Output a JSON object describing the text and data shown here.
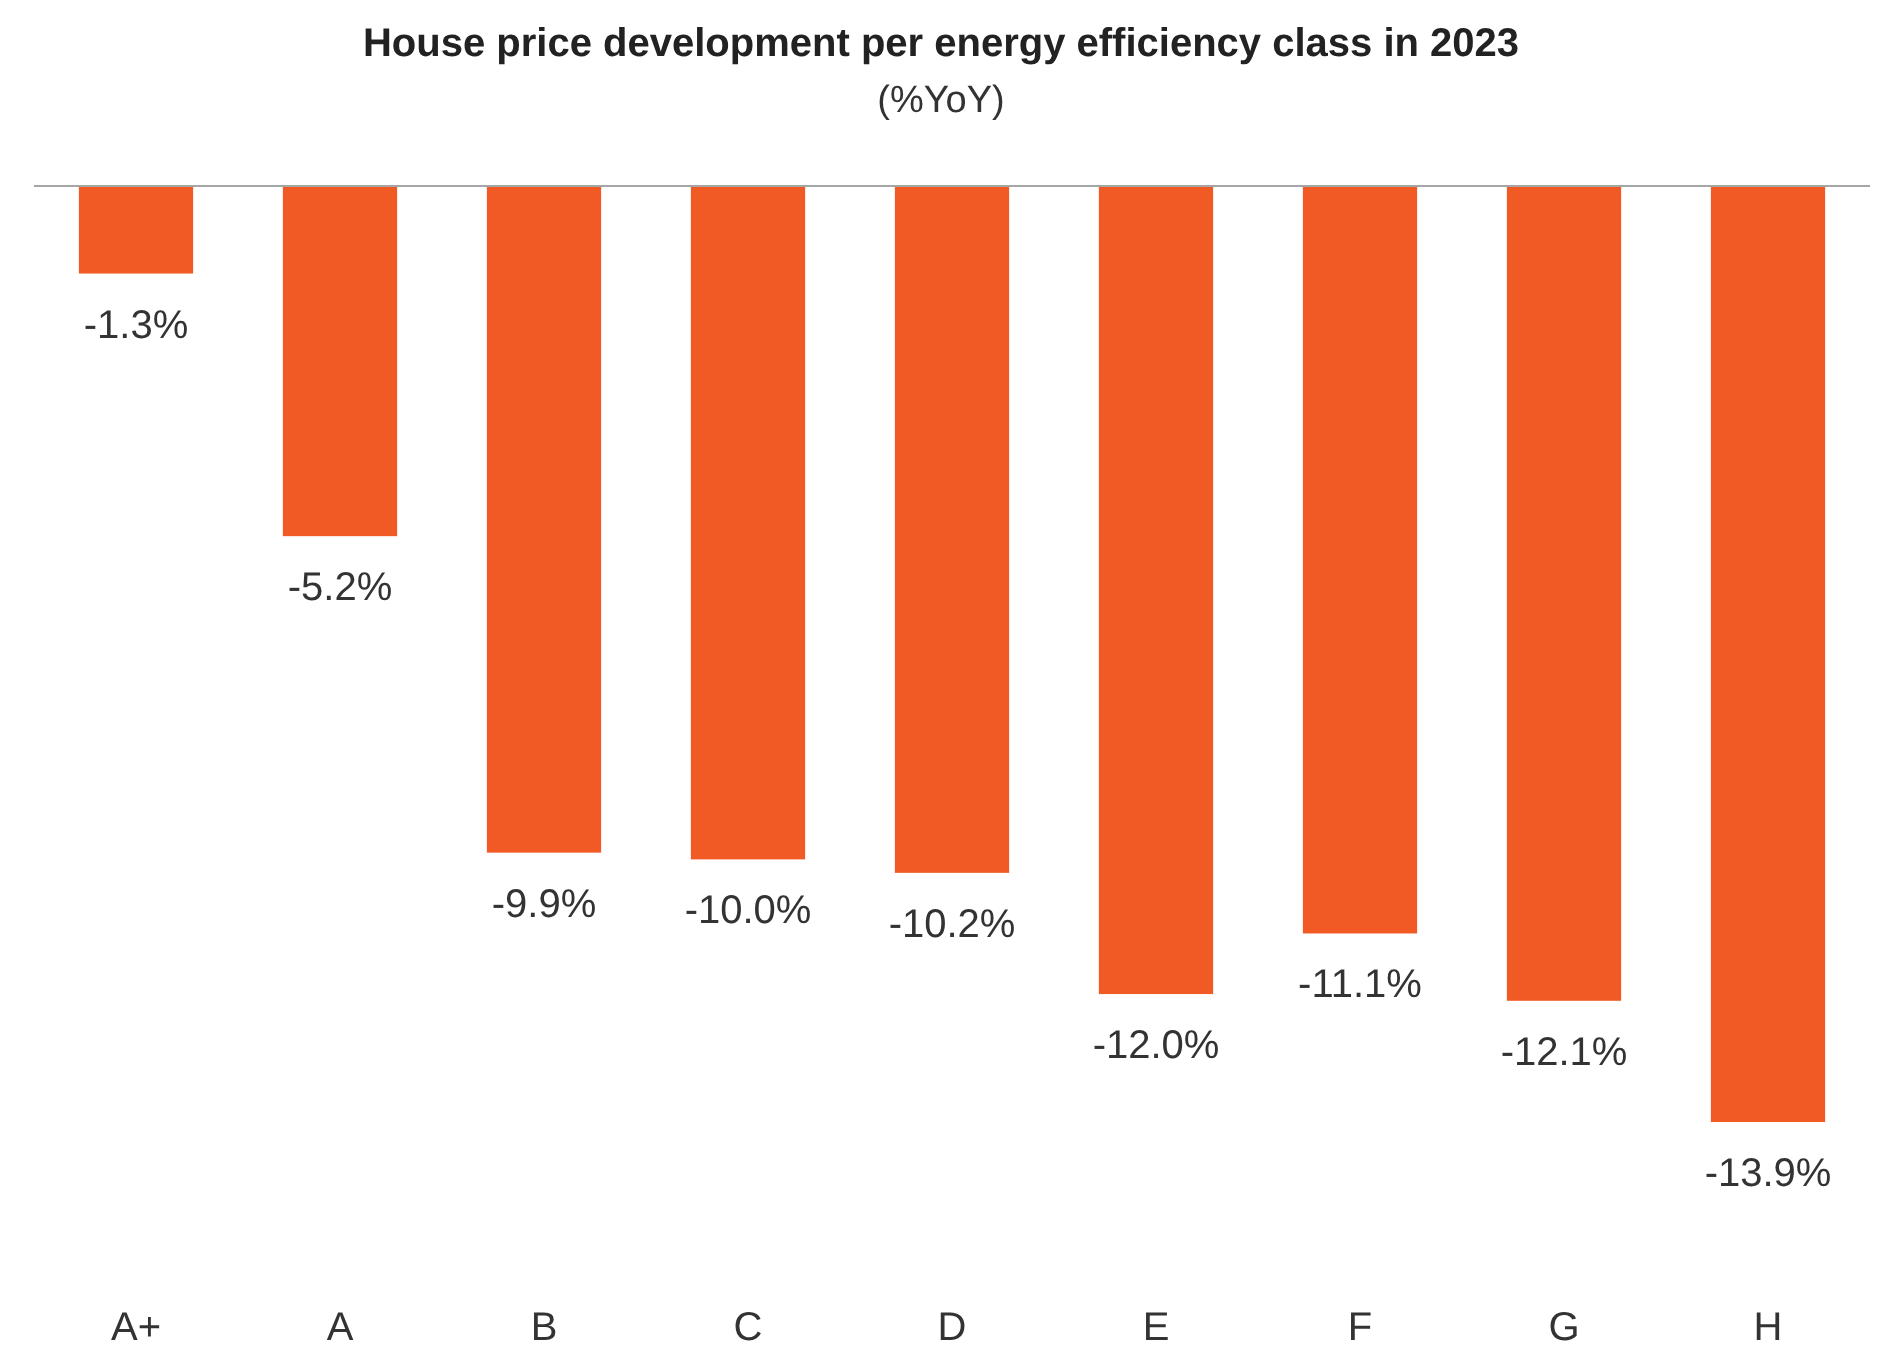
{
  "chart_data": {
    "type": "bar",
    "title": "House price development per energy efficiency class in 2023",
    "subtitle": "(%YoY)",
    "categories": [
      "A+",
      "A",
      "B",
      "C",
      "D",
      "E",
      "F",
      "G",
      "H"
    ],
    "values": [
      -1.3,
      -5.2,
      -9.9,
      -10.0,
      -10.2,
      -12.0,
      -11.1,
      -12.1,
      -13.9
    ],
    "value_labels": [
      "-1.3%",
      "-5.2%",
      "-9.9%",
      "-10.0%",
      "-10.2%",
      "-12.0%",
      "-11.1%",
      "-12.1%",
      "-13.9%"
    ],
    "color": "#f15a24"
  }
}
